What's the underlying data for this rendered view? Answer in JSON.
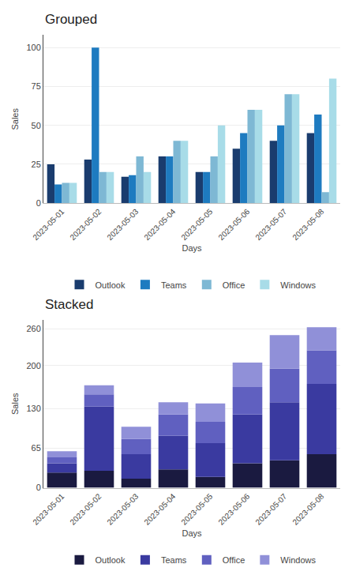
{
  "chart_data": [
    {
      "type": "bar",
      "title": "Grouped",
      "xlabel": "Days",
      "ylabel": "Sales",
      "categories": [
        "2023-05-01",
        "2023-05-02",
        "2023-05-03",
        "2023-05-04",
        "2023-05-05",
        "2023-05-06",
        "2023-05-07",
        "2023-05-08"
      ],
      "series": [
        {
          "name": "Outlook",
          "color": "#1A3C6E",
          "values": [
            25,
            28,
            17,
            30,
            20,
            35,
            40,
            45
          ]
        },
        {
          "name": "Teams",
          "color": "#1E7BC0",
          "values": [
            12,
            100,
            18,
            30,
            20,
            45,
            50,
            57
          ]
        },
        {
          "name": "Office",
          "color": "#7EB8D4",
          "values": [
            13,
            20,
            30,
            40,
            30,
            60,
            70,
            7
          ]
        },
        {
          "name": "Windows",
          "color": "#A8DCE8",
          "values": [
            13,
            20,
            20,
            40,
            50,
            60,
            70,
            80
          ]
        }
      ],
      "ylim": [
        0,
        108
      ],
      "yticks": [
        0,
        25,
        50,
        75,
        100
      ],
      "grid": true,
      "legend": "bottom"
    },
    {
      "type": "bar",
      "title": "Stacked",
      "xlabel": "Days",
      "ylabel": "Sales",
      "categories": [
        "2023-05-01",
        "2023-05-02",
        "2023-05-03",
        "2023-05-04",
        "2023-05-05",
        "2023-05-06",
        "2023-05-07",
        "2023-05-08"
      ],
      "series": [
        {
          "name": "Outlook",
          "color": "#1A1A40",
          "values": [
            25,
            28,
            15,
            30,
            18,
            40,
            45,
            55
          ]
        },
        {
          "name": "Teams",
          "color": "#3A3AA0",
          "values": [
            15,
            105,
            40,
            55,
            55,
            80,
            95,
            115
          ]
        },
        {
          "name": "Office",
          "color": "#6060C0",
          "values": [
            10,
            20,
            25,
            35,
            35,
            45,
            55,
            55
          ]
        },
        {
          "name": "Windows",
          "color": "#9090D8",
          "values": [
            10,
            15,
            20,
            20,
            30,
            40,
            55,
            38
          ]
        }
      ],
      "ylim": [
        0,
        275
      ],
      "yticks": [
        0,
        65,
        130,
        200,
        260
      ],
      "grid": true,
      "stacked": true,
      "legend": "bottom"
    }
  ]
}
